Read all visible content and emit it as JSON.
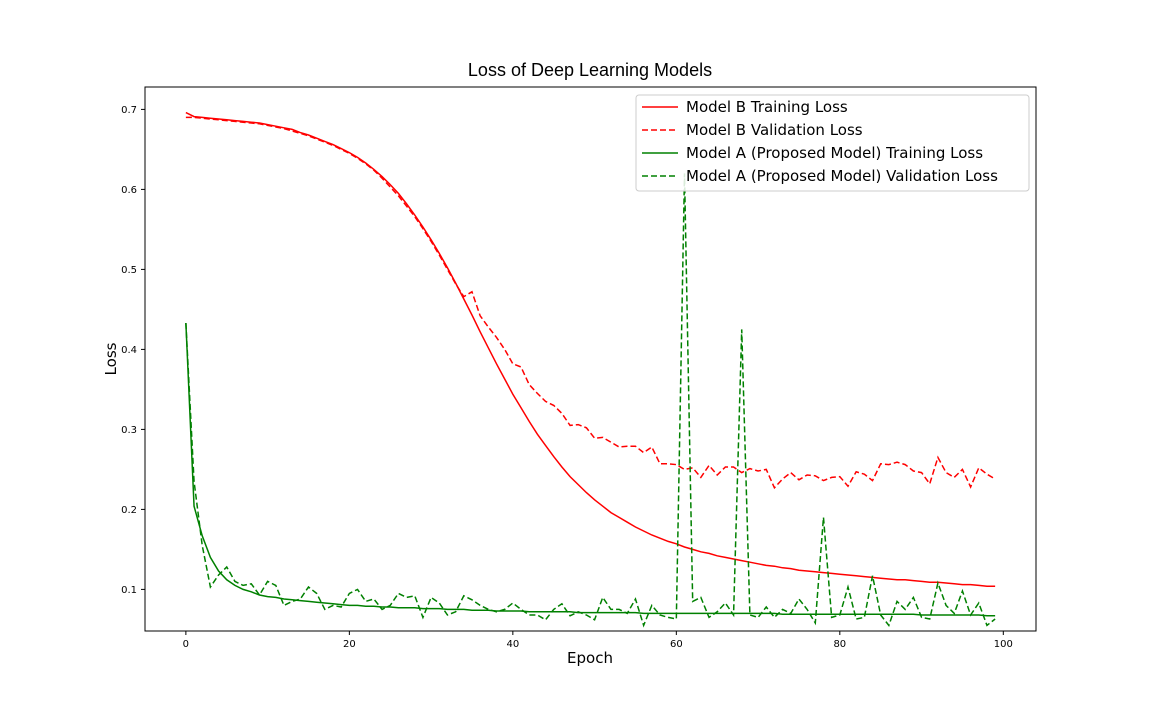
{
  "chart_data": {
    "type": "line",
    "title": "Loss of Deep Learning Models",
    "xlabel": "Epoch",
    "ylabel": "Loss",
    "xlim": [
      -5,
      104
    ],
    "ylim": [
      0.048,
      0.728
    ],
    "xticks": [
      0,
      20,
      40,
      60,
      80,
      100
    ],
    "yticks": [
      0.1,
      0.2,
      0.3,
      0.4,
      0.5,
      0.6,
      0.7
    ],
    "grid": false,
    "legend_position": "top-right",
    "series": [
      {
        "name": "Model B Training Loss",
        "color": "#ff0000",
        "linestyle": "solid",
        "values": [
          0.696,
          0.691,
          0.69,
          0.689,
          0.688,
          0.687,
          0.686,
          0.685,
          0.684,
          0.683,
          0.681,
          0.679,
          0.677,
          0.675,
          0.671,
          0.668,
          0.664,
          0.66,
          0.656,
          0.651,
          0.646,
          0.64,
          0.633,
          0.625,
          0.616,
          0.606,
          0.595,
          0.582,
          0.568,
          0.553,
          0.537,
          0.52,
          0.502,
          0.483,
          0.463,
          0.443,
          0.422,
          0.402,
          0.382,
          0.363,
          0.344,
          0.327,
          0.31,
          0.294,
          0.28,
          0.266,
          0.253,
          0.241,
          0.231,
          0.221,
          0.212,
          0.204,
          0.196,
          0.19,
          0.184,
          0.178,
          0.173,
          0.168,
          0.164,
          0.16,
          0.157,
          0.153,
          0.15,
          0.147,
          0.145,
          0.142,
          0.14,
          0.138,
          0.136,
          0.134,
          0.132,
          0.13,
          0.129,
          0.127,
          0.126,
          0.124,
          0.123,
          0.122,
          0.121,
          0.12,
          0.119,
          0.118,
          0.117,
          0.116,
          0.115,
          0.114,
          0.113,
          0.112,
          0.112,
          0.111,
          0.11,
          0.109,
          0.109,
          0.108,
          0.107,
          0.106,
          0.106,
          0.105,
          0.104,
          0.104
        ]
      },
      {
        "name": "Model B Validation Loss",
        "color": "#ff0000",
        "linestyle": "dashed",
        "values": [
          0.69,
          0.69,
          0.689,
          0.688,
          0.687,
          0.686,
          0.685,
          0.684,
          0.683,
          0.682,
          0.68,
          0.678,
          0.676,
          0.673,
          0.67,
          0.667,
          0.663,
          0.659,
          0.655,
          0.65,
          0.645,
          0.639,
          0.632,
          0.624,
          0.614,
          0.603,
          0.592,
          0.579,
          0.566,
          0.551,
          0.535,
          0.518,
          0.5,
          0.482,
          0.466,
          0.472,
          0.442,
          0.428,
          0.415,
          0.4,
          0.382,
          0.378,
          0.356,
          0.345,
          0.335,
          0.33,
          0.32,
          0.305,
          0.306,
          0.302,
          0.289,
          0.29,
          0.284,
          0.278,
          0.279,
          0.279,
          0.271,
          0.278,
          0.257,
          0.257,
          0.256,
          0.25,
          0.252,
          0.24,
          0.255,
          0.243,
          0.253,
          0.253,
          0.246,
          0.251,
          0.248,
          0.25,
          0.227,
          0.238,
          0.246,
          0.237,
          0.243,
          0.242,
          0.236,
          0.24,
          0.241,
          0.229,
          0.247,
          0.244,
          0.236,
          0.257,
          0.256,
          0.259,
          0.256,
          0.248,
          0.246,
          0.232,
          0.265,
          0.246,
          0.24,
          0.25,
          0.228,
          0.252,
          0.244,
          0.238
        ]
      },
      {
        "name": "Model A (Proposed Model) Training Loss",
        "color": "#008000",
        "linestyle": "solid",
        "values": [
          0.433,
          0.204,
          0.167,
          0.14,
          0.123,
          0.112,
          0.105,
          0.1,
          0.097,
          0.093,
          0.091,
          0.09,
          0.088,
          0.087,
          0.086,
          0.085,
          0.084,
          0.083,
          0.082,
          0.081,
          0.08,
          0.08,
          0.079,
          0.079,
          0.078,
          0.078,
          0.077,
          0.077,
          0.077,
          0.076,
          0.076,
          0.076,
          0.075,
          0.075,
          0.075,
          0.074,
          0.074,
          0.074,
          0.073,
          0.073,
          0.073,
          0.073,
          0.072,
          0.072,
          0.072,
          0.072,
          0.072,
          0.072,
          0.071,
          0.071,
          0.071,
          0.071,
          0.071,
          0.071,
          0.071,
          0.071,
          0.07,
          0.07,
          0.07,
          0.07,
          0.07,
          0.07,
          0.07,
          0.07,
          0.07,
          0.07,
          0.07,
          0.07,
          0.07,
          0.07,
          0.07,
          0.07,
          0.07,
          0.069,
          0.069,
          0.069,
          0.069,
          0.069,
          0.069,
          0.069,
          0.069,
          0.069,
          0.069,
          0.069,
          0.069,
          0.069,
          0.069,
          0.069,
          0.069,
          0.069,
          0.068,
          0.068,
          0.068,
          0.068,
          0.068,
          0.068,
          0.068,
          0.068,
          0.067,
          0.067
        ]
      },
      {
        "name": "Model A (Proposed Model) Validation Loss",
        "color": "#008000",
        "linestyle": "dashed",
        "values": [
          0.433,
          0.235,
          0.155,
          0.103,
          0.118,
          0.128,
          0.11,
          0.105,
          0.107,
          0.093,
          0.11,
          0.105,
          0.08,
          0.085,
          0.088,
          0.103,
          0.095,
          0.075,
          0.08,
          0.078,
          0.095,
          0.1,
          0.085,
          0.088,
          0.075,
          0.08,
          0.095,
          0.09,
          0.092,
          0.065,
          0.09,
          0.083,
          0.068,
          0.072,
          0.092,
          0.087,
          0.08,
          0.075,
          0.072,
          0.075,
          0.083,
          0.075,
          0.068,
          0.068,
          0.062,
          0.075,
          0.082,
          0.067,
          0.072,
          0.068,
          0.062,
          0.09,
          0.075,
          0.075,
          0.07,
          0.088,
          0.055,
          0.08,
          0.068,
          0.065,
          0.063,
          0.62,
          0.085,
          0.09,
          0.065,
          0.072,
          0.083,
          0.068,
          0.425,
          0.068,
          0.065,
          0.078,
          0.065,
          0.075,
          0.07,
          0.088,
          0.075,
          0.058,
          0.19,
          0.065,
          0.068,
          0.103,
          0.063,
          0.065,
          0.117,
          0.068,
          0.055,
          0.085,
          0.075,
          0.09,
          0.065,
          0.063,
          0.108,
          0.08,
          0.07,
          0.098,
          0.068,
          0.083,
          0.055,
          0.063
        ]
      }
    ]
  }
}
